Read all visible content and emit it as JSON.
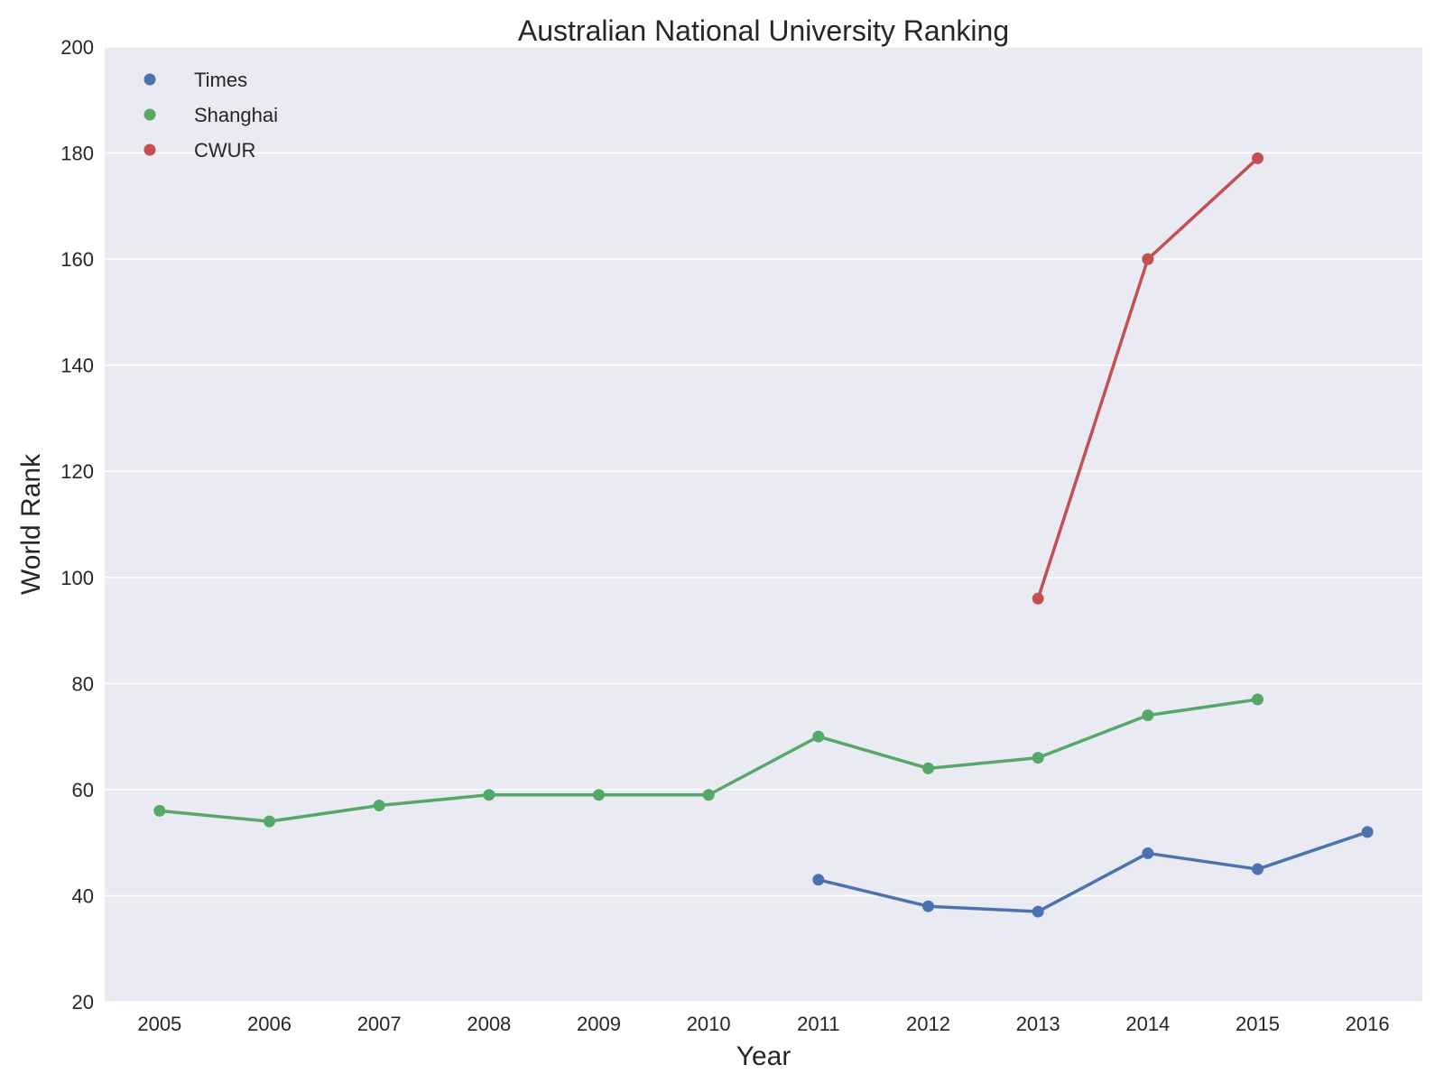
{
  "chart_data": {
    "type": "line",
    "title": "Australian National University Ranking",
    "xlabel": "Year",
    "ylabel": "World Rank",
    "x": [
      2005,
      2006,
      2007,
      2008,
      2009,
      2010,
      2011,
      2012,
      2013,
      2014,
      2015,
      2016
    ],
    "x_tick_labels": [
      "2005",
      "2006",
      "2007",
      "2008",
      "2009",
      "2010",
      "2011",
      "2012",
      "2013",
      "2014",
      "2015",
      "2016"
    ],
    "xlim": [
      2004.5,
      2016.5
    ],
    "ylim": [
      20,
      200
    ],
    "y_ticks": [
      20,
      40,
      60,
      80,
      100,
      120,
      140,
      160,
      180,
      200
    ],
    "y_tick_labels": [
      "20",
      "40",
      "60",
      "80",
      "100",
      "120",
      "140",
      "160",
      "180",
      "200"
    ],
    "grid": "horizontal",
    "legend_position": "top-left",
    "background_color": "#eaeaf2",
    "series": [
      {
        "name": "Times",
        "color": "#4c72b0",
        "points": [
          [
            2011,
            43
          ],
          [
            2012,
            38
          ],
          [
            2013,
            37
          ],
          [
            2014,
            48
          ],
          [
            2015,
            45
          ],
          [
            2016,
            52
          ]
        ]
      },
      {
        "name": "Shanghai",
        "color": "#55a868",
        "points": [
          [
            2005,
            56
          ],
          [
            2006,
            54
          ],
          [
            2007,
            57
          ],
          [
            2008,
            59
          ],
          [
            2009,
            59
          ],
          [
            2010,
            59
          ],
          [
            2011,
            70
          ],
          [
            2012,
            64
          ],
          [
            2013,
            66
          ],
          [
            2014,
            74
          ],
          [
            2015,
            77
          ]
        ]
      },
      {
        "name": "CWUR",
        "color": "#c44e52",
        "points": [
          [
            2013,
            96
          ],
          [
            2014,
            160
          ],
          [
            2015,
            179
          ]
        ]
      }
    ]
  }
}
